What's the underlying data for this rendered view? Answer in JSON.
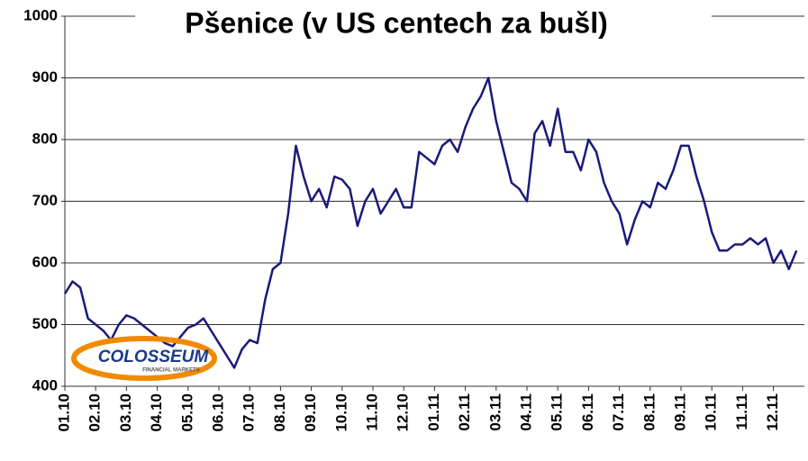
{
  "chart_data": {
    "type": "line",
    "title": "Pšenice (v US centech za bušl)",
    "categories": [
      "01.10",
      null,
      null,
      null,
      "02.10",
      null,
      null,
      null,
      "03.10",
      null,
      null,
      null,
      "04.10",
      null,
      null,
      null,
      "05.10",
      null,
      null,
      null,
      "06.10",
      null,
      null,
      null,
      "07.10",
      null,
      null,
      null,
      "08.10",
      null,
      null,
      null,
      "09.10",
      null,
      null,
      null,
      "10.10",
      null,
      null,
      null,
      "11.10",
      null,
      null,
      null,
      "12.10",
      null,
      null,
      null,
      "01.11",
      null,
      null,
      null,
      "02.11",
      null,
      null,
      null,
      "03.11",
      null,
      null,
      null,
      "04.11",
      null,
      null,
      null,
      "05.11",
      null,
      null,
      null,
      "06.11",
      null,
      null,
      null,
      "07.11",
      null,
      null,
      null,
      "08.11",
      null,
      null,
      null,
      "09.11",
      null,
      null,
      null,
      "10.11",
      null,
      null,
      null,
      "11.11",
      null,
      null,
      null,
      "12.11",
      null,
      null,
      null
    ],
    "series": [
      {
        "color": "#1a1a7a",
        "values": [
          550,
          570,
          560,
          510,
          500,
          490,
          475,
          500,
          515,
          510,
          500,
          490,
          480,
          470,
          465,
          480,
          495,
          500,
          510,
          490,
          470,
          450,
          430,
          460,
          475,
          470,
          540,
          590,
          600,
          680,
          790,
          740,
          700,
          720,
          690,
          740,
          735,
          720,
          660,
          700,
          720,
          680,
          700,
          720,
          690,
          690,
          780,
          770,
          760,
          790,
          800,
          780,
          820,
          850,
          870,
          900,
          830,
          780,
          730,
          720,
          700,
          810,
          830,
          790,
          850,
          780,
          780,
          750,
          800,
          780,
          730,
          700,
          680,
          630,
          670,
          700,
          690,
          730,
          720,
          750,
          790,
          790,
          740,
          700,
          650,
          620,
          620,
          630,
          630,
          640,
          630,
          640,
          600,
          620,
          590,
          620
        ]
      }
    ],
    "ylim": [
      400,
      1000
    ],
    "yticks": [
      400,
      500,
      600,
      700,
      800,
      900,
      1000
    ],
    "grid": true
  },
  "logo_text": "COLOSSEUM",
  "logo_subtext": "FINANCIAL MARKETS"
}
